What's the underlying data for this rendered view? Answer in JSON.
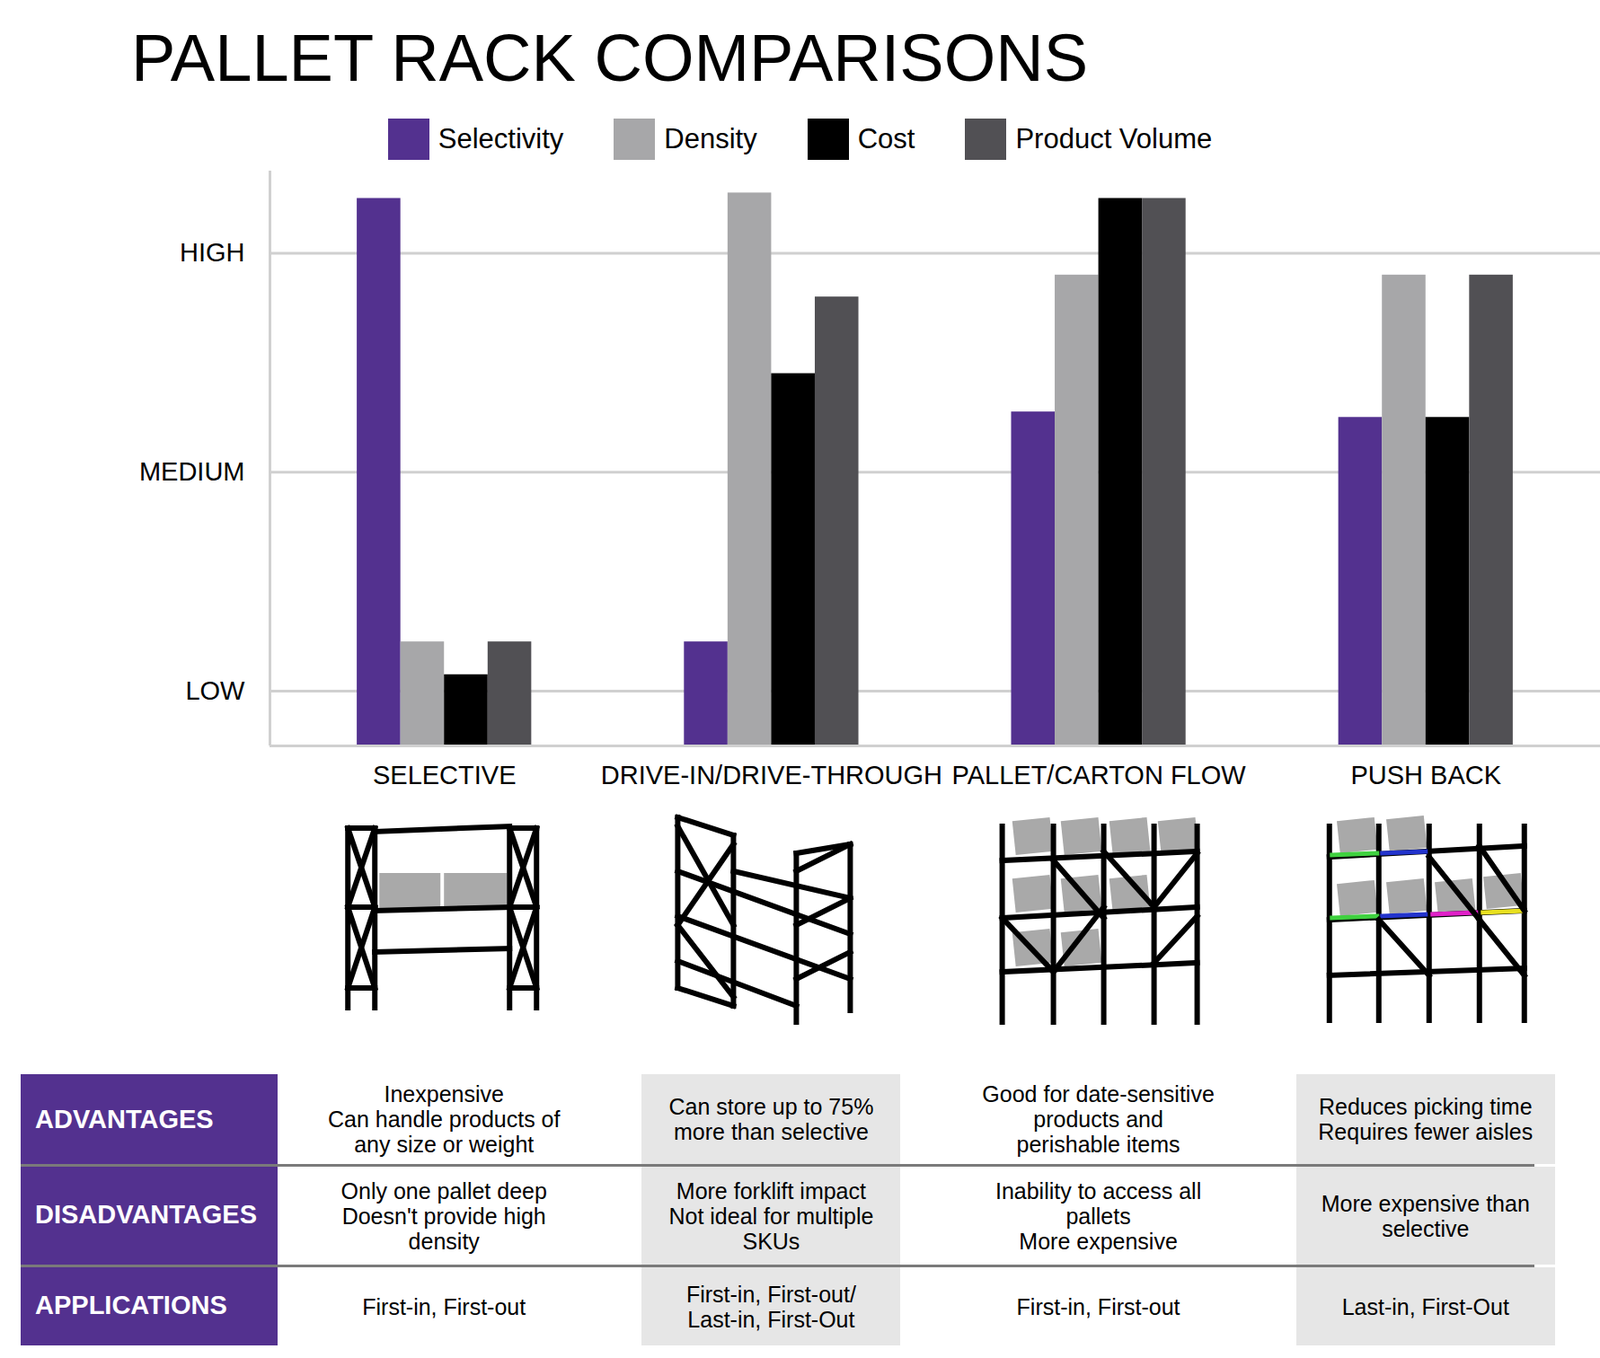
{
  "chart_data": {
    "type": "bar",
    "title": "PALLET RACK COMPARISONS",
    "categories": [
      "SELECTIVE",
      "DRIVE-IN/DRIVE-THROUGH",
      "PALLET/CARTON FLOW",
      "PUSH BACK"
    ],
    "series": [
      {
        "name": "Selectivity",
        "color": "#53318f",
        "values": [
          10,
          1.9,
          6.1,
          6
        ]
      },
      {
        "name": "Density",
        "color": "#a7a7a9",
        "values": [
          1.9,
          10.1,
          8.6,
          8.6
        ]
      },
      {
        "name": "Cost",
        "color": "#000000",
        "values": [
          1.3,
          6.8,
          10,
          6
        ]
      },
      {
        "name": "Product Volume",
        "color": "#515054",
        "values": [
          1.9,
          8.2,
          10,
          8.6
        ]
      }
    ],
    "ylim": [
      0,
      10.5
    ],
    "yticks": [
      {
        "value": 1,
        "label": "LOW"
      },
      {
        "value": 5,
        "label": "MEDIUM"
      },
      {
        "value": 9,
        "label": "HIGH"
      }
    ],
    "grid": true,
    "legend": "top"
  },
  "table": {
    "rows": [
      {
        "label": "ADVANTAGES",
        "cells": [
          [
            "Inexpensive",
            "Can handle products of any size or weight"
          ],
          [
            "Can store up to 75% more than selective"
          ],
          [
            "Good for date-sensitive products and perishable items"
          ],
          [
            "Reduces picking time",
            "Requires fewer aisles"
          ]
        ]
      },
      {
        "label": "DISADVANTAGES",
        "cells": [
          [
            "Only one pallet deep",
            "Doesn't provide high density"
          ],
          [
            "More forklift impact",
            "Not ideal for multiple SKUs"
          ],
          [
            "Inability to access all pallets",
            "More expensive"
          ],
          [
            "More expensive than selective"
          ]
        ]
      },
      {
        "label": "APPLICATIONS",
        "cells": [
          [
            "First-in, First-out"
          ],
          [
            "First-in, First-out/",
            "Last-in, First-Out"
          ],
          [
            "First-in, First-out"
          ],
          [
            "Last-in, First-Out"
          ]
        ]
      }
    ]
  }
}
